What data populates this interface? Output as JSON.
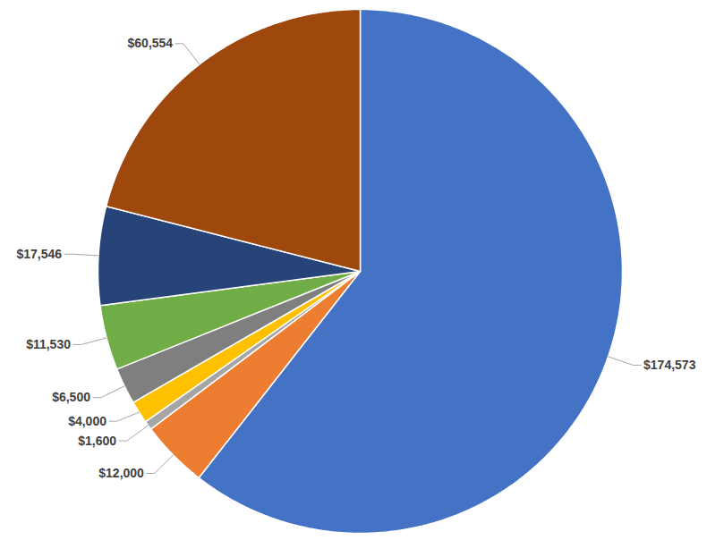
{
  "chart_data": {
    "type": "pie",
    "values": [
      174573,
      12000,
      1600,
      4000,
      6500,
      11530,
      17546,
      60554
    ],
    "value_labels": [
      "$174,573",
      "$12,000",
      "$1,600",
      "$4,000",
      "$6,500",
      "$11,530",
      "$17,546",
      "$60,554"
    ],
    "colors": [
      "#4472c4",
      "#ed7d31",
      "#a5a5a5",
      "#ffc000",
      "#7f7f7f",
      "#70ad47",
      "#264478",
      "#9e480e"
    ],
    "data_labels": true
  }
}
